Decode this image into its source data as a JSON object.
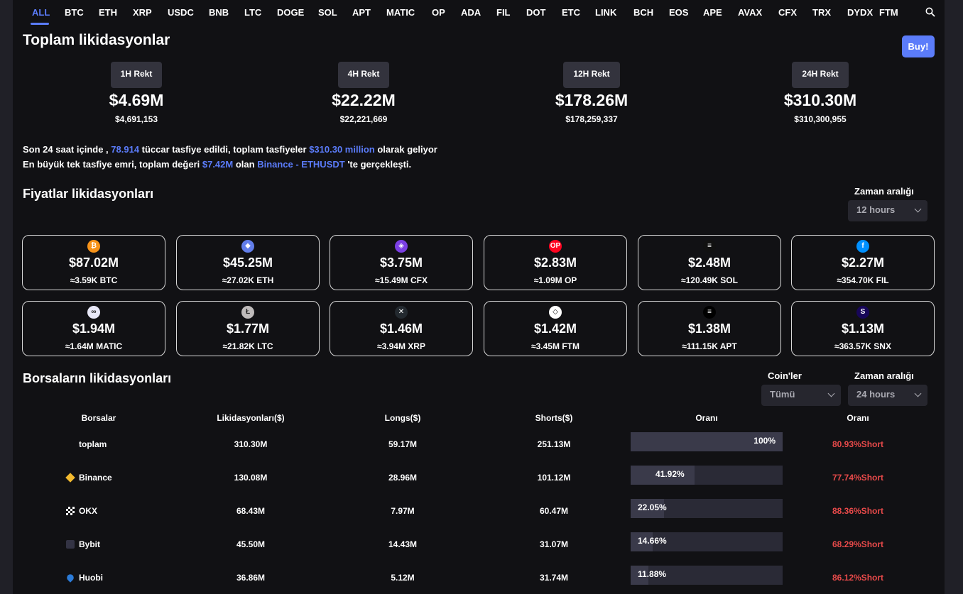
{
  "tabs": [
    "ALL",
    "BTC",
    "ETH",
    "XRP",
    "USDC",
    "BNB",
    "LTC",
    "DOGE",
    "SOL",
    "APT",
    "MATIC",
    "OP",
    "ADA",
    "FIL",
    "DOT",
    "ETC",
    "LINK",
    "BCH",
    "EOS",
    "APE",
    "AVAX",
    "CFX",
    "TRX",
    "DYDX",
    "FTM"
  ],
  "header": {
    "title": "Toplam likidasyonlar",
    "buy_label": "Buy!"
  },
  "rekt": [
    {
      "label": "1H Rekt",
      "value": "$4.69M",
      "exact": "$4,691,153"
    },
    {
      "label": "4H Rekt",
      "value": "$22.22M",
      "exact": "$22,221,669"
    },
    {
      "label": "12H Rekt",
      "value": "$178.26M",
      "exact": "$178,259,337"
    },
    {
      "label": "24H Rekt",
      "value": "$310.30M",
      "exact": "$310,300,955"
    }
  ],
  "summary": {
    "l1_a": "Son 24 saat içinde , ",
    "l1_traders": "78.914",
    "l1_b": " tüccar tasfiye edildi, toplam tasfiyeler ",
    "l1_total": "$310.30 million",
    "l1_c": " olarak geliyor",
    "l2_a": "En büyük tek tasfiye emri, toplam değeri ",
    "l2_value": "$7.42M",
    "l2_b": " olan ",
    "l2_exchange": "Binance - ETHUSDT",
    "l2_c": " 'te gerçekleşti."
  },
  "price_section": {
    "title": "Fiyatlar likidasyonları",
    "range_label": "Zaman aralığı",
    "range_value": "12 hours"
  },
  "cards": [
    {
      "value": "$87.02M",
      "sub": "≈3.59K BTC",
      "color": "#f7931a",
      "icon": "₿"
    },
    {
      "value": "$45.25M",
      "sub": "≈27.02K ETH",
      "color": "#627eea",
      "icon": "◆"
    },
    {
      "value": "$3.75M",
      "sub": "≈15.49M CFX",
      "color": "#7b3fe4",
      "icon": "◈"
    },
    {
      "value": "$2.83M",
      "sub": "≈1.09M OP",
      "color": "#ff0420",
      "icon": "OP"
    },
    {
      "value": "$2.48M",
      "sub": "≈120.49K SOL",
      "color": "#111111",
      "icon": "≡"
    },
    {
      "value": "$2.27M",
      "sub": "≈354.70K FIL",
      "color": "#0090ff",
      "icon": "f"
    },
    {
      "value": "$1.94M",
      "sub": "≈1.64M MATIC",
      "color": "#e8e8f8",
      "icon": "∞"
    },
    {
      "value": "$1.77M",
      "sub": "≈21.82K LTC",
      "color": "#bfbbbb",
      "icon": "Ł"
    },
    {
      "value": "$1.46M",
      "sub": "≈3.94M XRP",
      "color": "#23292f",
      "icon": "✕"
    },
    {
      "value": "$1.42M",
      "sub": "≈3.45M FTM",
      "color": "#ffffff",
      "icon": "◇"
    },
    {
      "value": "$1.38M",
      "sub": "≈111.15K APT",
      "color": "#000000",
      "icon": "≡"
    },
    {
      "value": "$1.13M",
      "sub": "≈363.57K SNX",
      "color": "#170659",
      "icon": "S"
    }
  ],
  "exchange_section": {
    "title": "Borsaların likidasyonları",
    "coins_label": "Coin'ler",
    "coins_value": "Tümü",
    "range_label": "Zaman aralığı",
    "range_value": "24 hours"
  },
  "table": {
    "headers": [
      "Borsalar",
      "Likidasyonları($)",
      "Longs($)",
      "Shorts($)",
      "Oranı",
      "Oranı"
    ],
    "rows": [
      {
        "name": "toplam",
        "liq": "310.30M",
        "longs": "59.17M",
        "shorts": "251.13M",
        "pct_text": "100%",
        "pct": 100,
        "ratio": "80.93%Short",
        "icon": ""
      },
      {
        "name": "Binance",
        "liq": "130.08M",
        "longs": "28.96M",
        "shorts": "101.12M",
        "pct_text": "41.92%",
        "pct": 41.92,
        "ratio": "77.74%Short",
        "icon": "binance"
      },
      {
        "name": "OKX",
        "liq": "68.43M",
        "longs": "7.97M",
        "shorts": "60.47M",
        "pct_text": "22.05%",
        "pct": 22.05,
        "ratio": "88.36%Short",
        "icon": "okx"
      },
      {
        "name": "Bybit",
        "liq": "45.50M",
        "longs": "14.43M",
        "shorts": "31.07M",
        "pct_text": "14.66%",
        "pct": 14.66,
        "ratio": "68.29%Short",
        "icon": "bybit"
      },
      {
        "name": "Huobi",
        "liq": "36.86M",
        "longs": "5.12M",
        "shorts": "31.74M",
        "pct_text": "11.88%",
        "pct": 11.88,
        "ratio": "86.12%Short",
        "icon": "huobi"
      }
    ]
  }
}
